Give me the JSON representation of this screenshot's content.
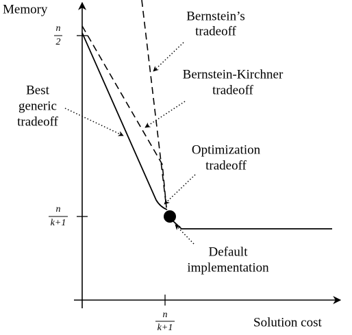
{
  "axes": {
    "y_label": "Memory",
    "x_label": "Solution cost"
  },
  "y_ticks": [
    {
      "numerator": "n",
      "denominator": "2"
    },
    {
      "numerator": "n",
      "denominator": "k+1"
    }
  ],
  "x_ticks": [
    {
      "numerator": "n",
      "denominator": "k+1"
    }
  ],
  "annotations": {
    "bernstein": [
      "Bernstein’s",
      "tradeoff"
    ],
    "bernstein_kirchner": [
      "Bernstein-Kirchner",
      "tradeoff"
    ],
    "best_generic": [
      "Best",
      "generic",
      "tradeoff"
    ],
    "optimization": [
      "Optimization",
      "tradeoff"
    ],
    "default": [
      "Default",
      "implementation"
    ]
  }
}
